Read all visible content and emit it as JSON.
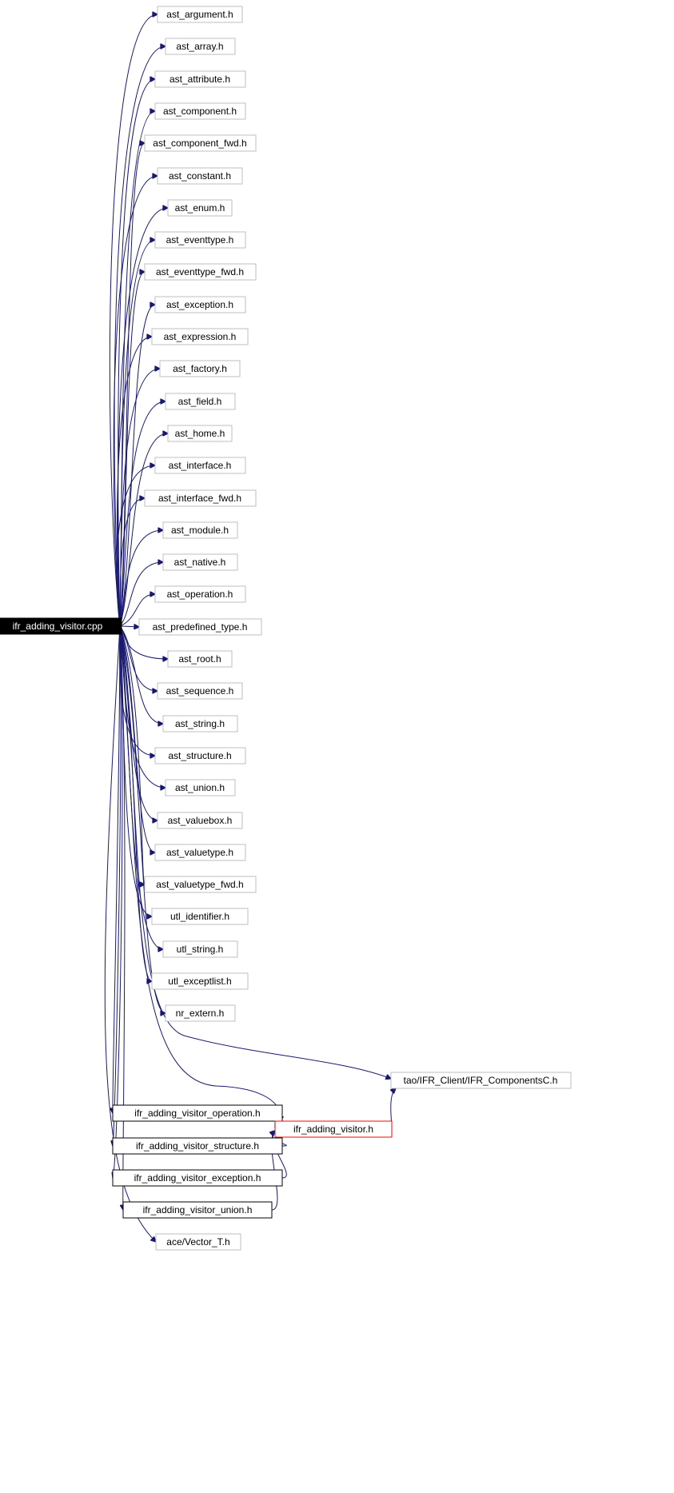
{
  "root": {
    "label": "ifr_adding_visitor.cpp"
  },
  "includes": [
    "ast_argument.h",
    "ast_array.h",
    "ast_attribute.h",
    "ast_component.h",
    "ast_component_fwd.h",
    "ast_constant.h",
    "ast_enum.h",
    "ast_eventtype.h",
    "ast_eventtype_fwd.h",
    "ast_exception.h",
    "ast_expression.h",
    "ast_factory.h",
    "ast_field.h",
    "ast_home.h",
    "ast_interface.h",
    "ast_interface_fwd.h",
    "ast_module.h",
    "ast_native.h",
    "ast_operation.h",
    "ast_predefined_type.h",
    "ast_root.h",
    "ast_sequence.h",
    "ast_string.h",
    "ast_structure.h",
    "ast_union.h",
    "ast_valuebox.h",
    "ast_valuetype.h",
    "ast_valuetype_fwd.h",
    "utl_identifier.h",
    "utl_string.h",
    "utl_exceptlist.h",
    "nr_extern.h"
  ],
  "visitor_headers": [
    "ifr_adding_visitor_operation.h",
    "ifr_adding_visitor_structure.h",
    "ifr_adding_visitor_exception.h",
    "ifr_adding_visitor_union.h"
  ],
  "base_visitor": {
    "label": "ifr_adding_visitor.h"
  },
  "components_header": {
    "label": "tao/IFR_Client/IFR_ComponentsC.h"
  },
  "vector_header": {
    "label": "ace/Vector_T.h"
  },
  "colors": {
    "edge": "#191970",
    "root_fill": "#000000",
    "highlight_border": "#ff0000",
    "node_border": "#bfbfbf"
  }
}
